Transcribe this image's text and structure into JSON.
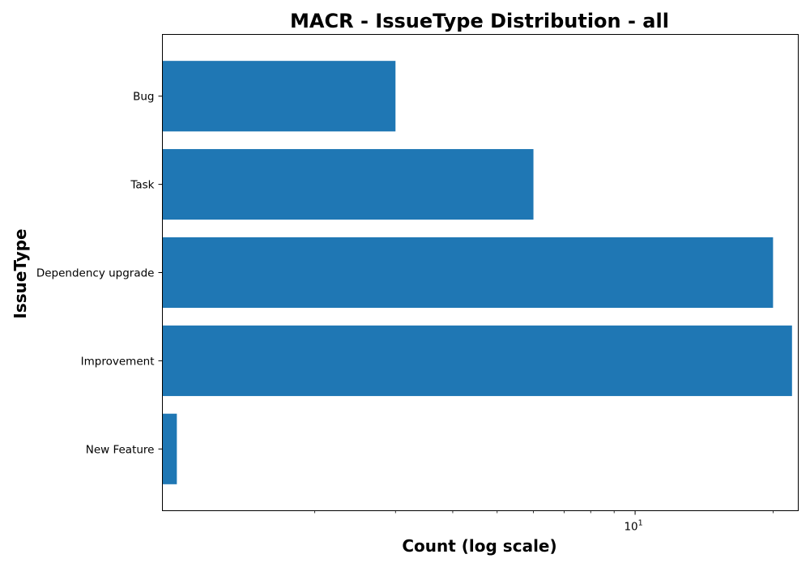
{
  "chart_data": {
    "type": "bar",
    "orientation": "horizontal",
    "title": "MACR - IssueType Distribution - all",
    "xlabel": "Count (log scale)",
    "ylabel": "IssueType",
    "x_scale": "log",
    "xlim": [
      0.93,
      22.7
    ],
    "x_ticks": [
      {
        "value": 10,
        "base": "10",
        "exponent": "1"
      }
    ],
    "categories": [
      "Bug",
      "Task",
      "Dependency upgrade",
      "Improvement",
      "New Feature"
    ],
    "values": [
      3,
      6,
      20,
      22,
      1
    ],
    "bar_color": "#1f77b4",
    "grid": false,
    "legend": "none"
  }
}
